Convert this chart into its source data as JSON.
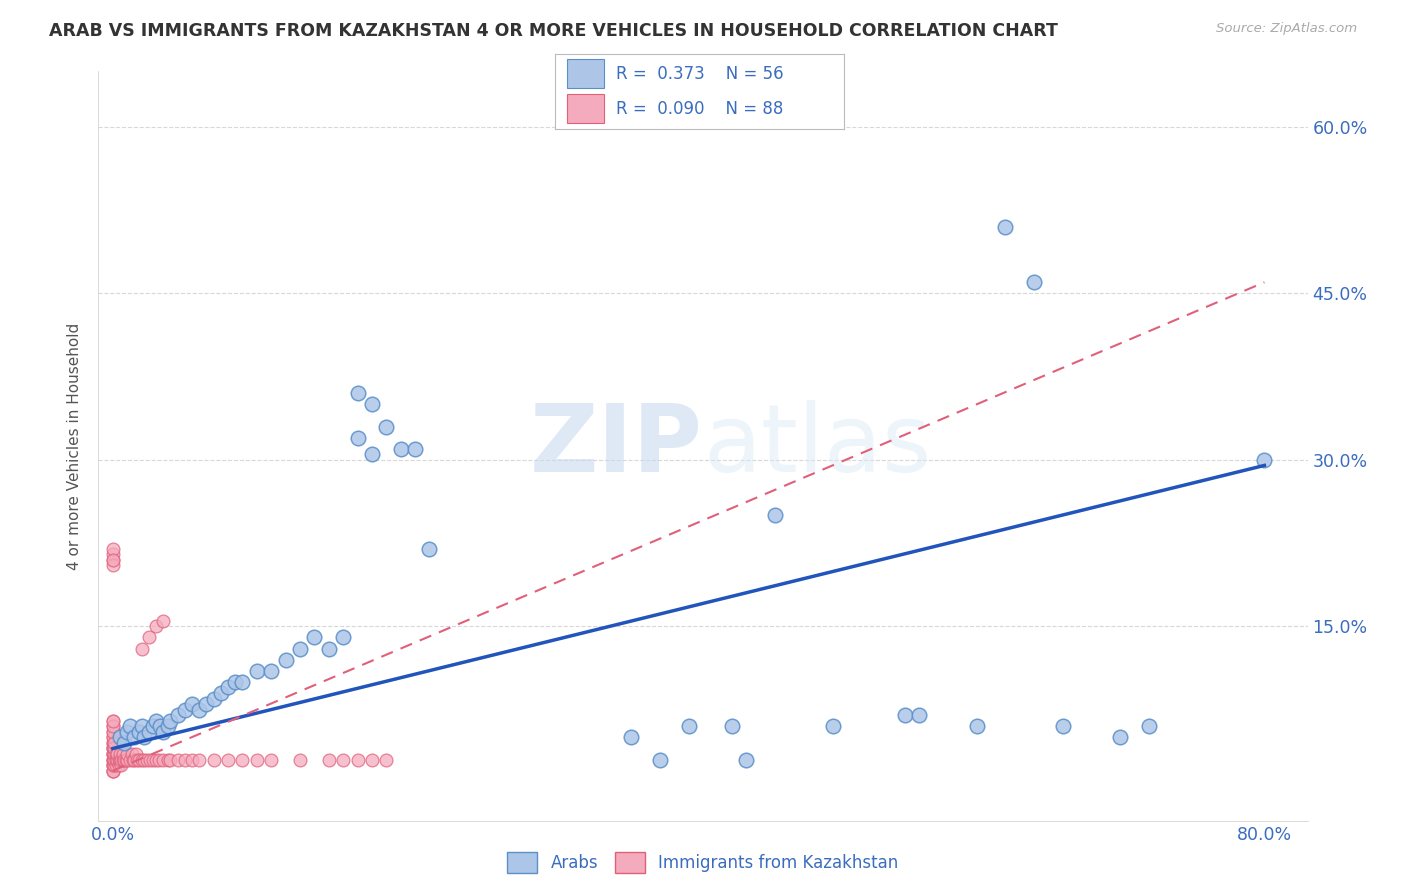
{
  "title": "ARAB VS IMMIGRANTS FROM KAZAKHSTAN 4 OR MORE VEHICLES IN HOUSEHOLD CORRELATION CHART",
  "source": "Source: ZipAtlas.com",
  "ylabel": "4 or more Vehicles in Household",
  "xlim": [
    -0.01,
    0.83
  ],
  "ylim": [
    -0.025,
    0.65
  ],
  "arab_R": 0.373,
  "arab_N": 56,
  "kaz_R": 0.09,
  "kaz_N": 88,
  "arab_color": "#adc6e8",
  "arab_edge": "#5b8fc9",
  "kaz_color": "#f5abbe",
  "kaz_edge": "#e0607a",
  "arab_line_color": "#2255bb",
  "kaz_line_color": "#e0607a",
  "watermark_color": "#d0dff0",
  "grid_color": "#d8d8d8",
  "arab_x": [
    0.005,
    0.008,
    0.01,
    0.012,
    0.015,
    0.018,
    0.02,
    0.022,
    0.025,
    0.028,
    0.03,
    0.033,
    0.035,
    0.038,
    0.04,
    0.045,
    0.05,
    0.055,
    0.06,
    0.065,
    0.07,
    0.075,
    0.08,
    0.085,
    0.09,
    0.1,
    0.11,
    0.12,
    0.13,
    0.14,
    0.15,
    0.16,
    0.17,
    0.18,
    0.19,
    0.2,
    0.21,
    0.22,
    0.17,
    0.18,
    0.36,
    0.38,
    0.4,
    0.43,
    0.44,
    0.46,
    0.5,
    0.55,
    0.56,
    0.6,
    0.62,
    0.64,
    0.66,
    0.7,
    0.72,
    0.8
  ],
  "arab_y": [
    0.05,
    0.045,
    0.055,
    0.06,
    0.05,
    0.055,
    0.06,
    0.05,
    0.055,
    0.06,
    0.065,
    0.06,
    0.055,
    0.06,
    0.065,
    0.07,
    0.075,
    0.08,
    0.075,
    0.08,
    0.085,
    0.09,
    0.095,
    0.1,
    0.1,
    0.11,
    0.11,
    0.12,
    0.13,
    0.14,
    0.13,
    0.14,
    0.36,
    0.35,
    0.33,
    0.31,
    0.31,
    0.22,
    0.32,
    0.305,
    0.05,
    0.03,
    0.06,
    0.06,
    0.03,
    0.25,
    0.06,
    0.07,
    0.07,
    0.06,
    0.51,
    0.46,
    0.06,
    0.05,
    0.06,
    0.3
  ],
  "kaz_x": [
    0.0,
    0.0,
    0.0,
    0.0,
    0.0,
    0.0,
    0.0,
    0.0,
    0.0,
    0.0,
    0.0,
    0.0,
    0.0,
    0.0,
    0.0,
    0.0,
    0.0,
    0.0,
    0.0,
    0.0,
    0.0,
    0.0,
    0.0,
    0.0,
    0.0,
    0.0,
    0.0,
    0.0,
    0.0,
    0.0,
    0.001,
    0.001,
    0.001,
    0.001,
    0.001,
    0.002,
    0.002,
    0.002,
    0.003,
    0.003,
    0.004,
    0.004,
    0.005,
    0.005,
    0.006,
    0.006,
    0.007,
    0.007,
    0.008,
    0.009,
    0.01,
    0.01,
    0.012,
    0.013,
    0.014,
    0.015,
    0.016,
    0.017,
    0.018,
    0.02,
    0.022,
    0.024,
    0.026,
    0.028,
    0.03,
    0.032,
    0.035,
    0.038,
    0.04,
    0.045,
    0.05,
    0.055,
    0.06,
    0.07,
    0.08,
    0.09,
    0.1,
    0.11,
    0.13,
    0.15,
    0.16,
    0.17,
    0.18,
    0.19,
    0.02,
    0.025,
    0.03,
    0.035
  ],
  "kaz_y": [
    0.02,
    0.025,
    0.03,
    0.035,
    0.04,
    0.045,
    0.05,
    0.055,
    0.06,
    0.065,
    0.02,
    0.025,
    0.03,
    0.035,
    0.04,
    0.045,
    0.05,
    0.055,
    0.06,
    0.065,
    0.02,
    0.025,
    0.03,
    0.035,
    0.04,
    0.21,
    0.215,
    0.22,
    0.205,
    0.21,
    0.025,
    0.03,
    0.035,
    0.04,
    0.045,
    0.025,
    0.03,
    0.035,
    0.03,
    0.035,
    0.025,
    0.03,
    0.03,
    0.035,
    0.025,
    0.03,
    0.03,
    0.035,
    0.03,
    0.03,
    0.03,
    0.035,
    0.03,
    0.035,
    0.03,
    0.03,
    0.035,
    0.03,
    0.03,
    0.03,
    0.03,
    0.03,
    0.03,
    0.03,
    0.03,
    0.03,
    0.03,
    0.03,
    0.03,
    0.03,
    0.03,
    0.03,
    0.03,
    0.03,
    0.03,
    0.03,
    0.03,
    0.03,
    0.03,
    0.03,
    0.03,
    0.03,
    0.03,
    0.03,
    0.13,
    0.14,
    0.15,
    0.155
  ]
}
